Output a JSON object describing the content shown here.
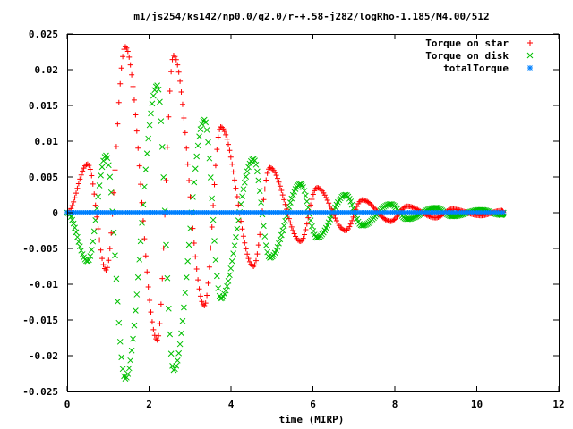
{
  "chart_data": {
    "type": "scatter",
    "title": "m1/js254/ks142/np0.0/q2.0/r-+.58-j282/logRho-1.185/M4.00/512",
    "xlabel": "time (MIRP)",
    "ylabel": "",
    "xlim": [
      0,
      12
    ],
    "ylim": [
      -0.025,
      0.025
    ],
    "x_ticks": [
      "0",
      "2",
      "4",
      "6",
      "8",
      "10",
      "12"
    ],
    "y_ticks": [
      "0.025",
      "0.02",
      "0.015",
      "0.01",
      "0.005",
      "0",
      "-0.005",
      "-0.01",
      "-0.015",
      "-0.02",
      "-0.025"
    ],
    "grid": false,
    "legend_position": "top-right",
    "x_range_data": [
      0,
      10.65
    ],
    "series": [
      {
        "name": "Torque on star",
        "marker": "+",
        "color": "#ff0000",
        "envelope_peaks": [
          {
            "x": 0.5,
            "y": 0.0068
          },
          {
            "x": 0.95,
            "y": -0.008
          },
          {
            "x": 1.42,
            "y": 0.0232
          },
          {
            "x": 2.2,
            "y": -0.0178
          },
          {
            "x": 2.6,
            "y": 0.022
          },
          {
            "x": 3.35,
            "y": -0.013
          },
          {
            "x": 3.75,
            "y": 0.012
          },
          {
            "x": 4.55,
            "y": -0.0075
          },
          {
            "x": 4.95,
            "y": 0.0063
          },
          {
            "x": 5.7,
            "y": -0.004
          },
          {
            "x": 6.1,
            "y": 0.0035
          },
          {
            "x": 6.8,
            "y": -0.0025
          },
          {
            "x": 7.2,
            "y": 0.0018
          },
          {
            "x": 7.9,
            "y": -0.0012
          },
          {
            "x": 8.3,
            "y": 0.0009
          },
          {
            "x": 9.0,
            "y": -0.0007
          },
          {
            "x": 9.4,
            "y": 0.0005
          },
          {
            "x": 10.1,
            "y": -0.0004
          },
          {
            "x": 10.6,
            "y": 0.0003
          }
        ]
      },
      {
        "name": "Torque on disk",
        "marker": "x",
        "color": "#00c000",
        "envelope_peaks": [
          {
            "x": 0.5,
            "y": -0.0068
          },
          {
            "x": 0.95,
            "y": 0.008
          },
          {
            "x": 1.42,
            "y": -0.0232
          },
          {
            "x": 2.2,
            "y": 0.0178
          },
          {
            "x": 2.6,
            "y": -0.022
          },
          {
            "x": 3.35,
            "y": 0.013
          },
          {
            "x": 3.75,
            "y": -0.012
          },
          {
            "x": 4.55,
            "y": 0.0075
          },
          {
            "x": 4.95,
            "y": -0.0063
          },
          {
            "x": 5.7,
            "y": 0.004
          },
          {
            "x": 6.1,
            "y": -0.0035
          },
          {
            "x": 6.8,
            "y": 0.0025
          },
          {
            "x": 7.2,
            "y": -0.0018
          },
          {
            "x": 7.9,
            "y": 0.0012
          },
          {
            "x": 8.3,
            "y": -0.0009
          },
          {
            "x": 9.0,
            "y": 0.0007
          },
          {
            "x": 9.4,
            "y": -0.0005
          },
          {
            "x": 10.1,
            "y": 0.0004
          },
          {
            "x": 10.6,
            "y": -0.0003
          }
        ]
      },
      {
        "name": "totalTorque",
        "marker": "*",
        "color": "#0080ff",
        "constant_value": 0
      }
    ]
  }
}
